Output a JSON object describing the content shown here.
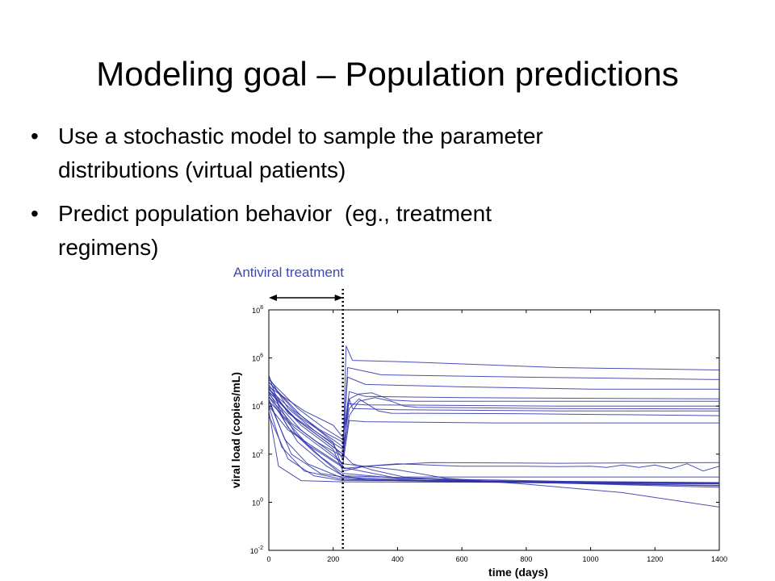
{
  "slide": {
    "title": "Modeling goal – Population predictions",
    "bullets": [
      {
        "symbol": "•",
        "lines": [
          "Use a stochastic model to sample the parameter",
          "distributions (virtual patients)"
        ]
      },
      {
        "symbol": "•",
        "lines": [
          "Predict population behavior  (eg., treatment",
          "regimens)"
        ]
      }
    ],
    "annotation": "Antiviral treatment"
  },
  "chart_data": {
    "type": "line",
    "title": "",
    "xlabel": "time (days)",
    "ylabel": "viral load (copies/mL)",
    "xlim": [
      0,
      1400
    ],
    "ylim_log10": [
      -2,
      8
    ],
    "y_scale": "log",
    "x_ticks": [
      "0",
      "200",
      "400",
      "600",
      "800",
      "1000",
      "1200",
      "1400"
    ],
    "y_ticks": [
      {
        "base": "10",
        "exp": "8"
      },
      {
        "base": "10",
        "exp": "6"
      },
      {
        "base": "10",
        "exp": "4"
      },
      {
        "base": "10",
        "exp": "2"
      },
      {
        "base": "10",
        "exp": "0"
      },
      {
        "base": "10",
        "exp": "-2"
      }
    ],
    "treatment_start_day": 230,
    "grid": false,
    "line_color": "#2b2fa8",
    "series_note_units": "x in days, y as log10(copies/mL)",
    "series": [
      {
        "values": [
          [
            0,
            4.6
          ],
          [
            60,
            3.1
          ],
          [
            140,
            2.1
          ],
          [
            230,
            1.1
          ],
          [
            300,
            0.95
          ],
          [
            600,
            0.88
          ],
          [
            900,
            0.82
          ],
          [
            1200,
            0.78
          ],
          [
            1400,
            0.76
          ]
        ]
      },
      {
        "values": [
          [
            0,
            4.3
          ],
          [
            50,
            2.6
          ],
          [
            120,
            1.6
          ],
          [
            230,
            1.0
          ],
          [
            400,
            0.9
          ],
          [
            800,
            0.83
          ],
          [
            1400,
            0.68
          ]
        ]
      },
      {
        "values": [
          [
            0,
            4.0
          ],
          [
            40,
            2.3
          ],
          [
            110,
            1.3
          ],
          [
            230,
            0.95
          ],
          [
            500,
            0.87
          ],
          [
            900,
            0.8
          ],
          [
            1400,
            0.62
          ]
        ]
      },
      {
        "values": [
          [
            0,
            4.8
          ],
          [
            80,
            2.9
          ],
          [
            160,
            1.9
          ],
          [
            230,
            1.2
          ],
          [
            400,
            1.0
          ],
          [
            700,
            0.88
          ],
          [
            1100,
            0.8
          ],
          [
            1400,
            0.8
          ]
        ]
      },
      {
        "values": [
          [
            0,
            3.6
          ],
          [
            60,
            1.8
          ],
          [
            140,
            1.1
          ],
          [
            230,
            0.9
          ],
          [
            600,
            0.9
          ],
          [
            1400,
            0.82
          ]
        ]
      },
      {
        "values": [
          [
            0,
            4.2
          ],
          [
            70,
            2.0
          ],
          [
            160,
            1.2
          ],
          [
            230,
            1.05
          ],
          [
            500,
            0.9
          ],
          [
            1000,
            0.78
          ],
          [
            1400,
            0.7
          ]
        ]
      },
      {
        "values": [
          [
            0,
            3.8
          ],
          [
            30,
            1.5
          ],
          [
            100,
            0.9
          ],
          [
            230,
            0.85
          ],
          [
            1400,
            0.8
          ]
        ]
      },
      {
        "values": [
          [
            0,
            4.4
          ],
          [
            90,
            2.5
          ],
          [
            180,
            1.5
          ],
          [
            230,
            1.1
          ],
          [
            600,
            0.95
          ],
          [
            1000,
            0.85
          ],
          [
            1400,
            0.78
          ]
        ]
      },
      {
        "values": [
          [
            0,
            4.5
          ],
          [
            100,
            3.0
          ],
          [
            200,
            2.0
          ],
          [
            230,
            1.6
          ],
          [
            400,
            1.35
          ],
          [
            550,
            1.0
          ],
          [
            800,
            0.75
          ],
          [
            1100,
            0.4
          ],
          [
            1400,
            -0.2
          ]
        ]
      },
      {
        "values": [
          [
            0,
            5.3
          ],
          [
            40,
            3.6
          ],
          [
            120,
            2.4
          ],
          [
            230,
            1.45
          ],
          [
            400,
            1.0
          ],
          [
            700,
            0.85
          ],
          [
            1000,
            0.8
          ],
          [
            1400,
            0.8
          ]
        ]
      },
      {
        "values": [
          [
            0,
            4.7
          ],
          [
            80,
            3.5
          ],
          [
            160,
            2.7
          ],
          [
            230,
            2.0
          ],
          [
            260,
            1.6
          ],
          [
            320,
            1.35
          ],
          [
            420,
            1.05
          ],
          [
            600,
            1.05
          ],
          [
            1000,
            1.05
          ],
          [
            1300,
            1.05
          ],
          [
            1400,
            1.05
          ]
        ]
      },
      {
        "values": [
          [
            0,
            4.6
          ],
          [
            100,
            3.2
          ],
          [
            200,
            2.2
          ],
          [
            230,
            1.3
          ],
          [
            300,
            1.5
          ],
          [
            400,
            1.6
          ],
          [
            500,
            1.55
          ],
          [
            600,
            1.5
          ],
          [
            700,
            1.5
          ],
          [
            800,
            1.5
          ],
          [
            900,
            1.48
          ],
          [
            1000,
            1.5
          ],
          [
            1050,
            1.45
          ],
          [
            1100,
            1.55
          ],
          [
            1150,
            1.45
          ],
          [
            1200,
            1.55
          ],
          [
            1250,
            1.4
          ],
          [
            1300,
            1.6
          ],
          [
            1350,
            1.3
          ],
          [
            1400,
            1.5
          ]
        ]
      },
      {
        "values": [
          [
            0,
            5.0
          ],
          [
            100,
            3.6
          ],
          [
            200,
            2.5
          ],
          [
            230,
            1.4
          ],
          [
            300,
            1.5
          ],
          [
            500,
            1.65
          ],
          [
            900,
            1.62
          ],
          [
            1400,
            1.65
          ]
        ]
      },
      {
        "values": [
          [
            0,
            5.2
          ],
          [
            60,
            3.9
          ],
          [
            140,
            3.0
          ],
          [
            200,
            2.4
          ],
          [
            230,
            1.8
          ],
          [
            240,
            6.5
          ],
          [
            260,
            5.9
          ],
          [
            400,
            5.85
          ],
          [
            900,
            5.6
          ],
          [
            1400,
            5.5
          ]
        ]
      },
      {
        "values": [
          [
            0,
            5.0
          ],
          [
            80,
            3.8
          ],
          [
            160,
            3.0
          ],
          [
            230,
            2.5
          ],
          [
            245,
            5.2
          ],
          [
            300,
            4.9
          ],
          [
            600,
            4.8
          ],
          [
            1000,
            4.7
          ],
          [
            1400,
            4.7
          ]
        ]
      },
      {
        "values": [
          [
            0,
            4.9
          ],
          [
            60,
            3.7
          ],
          [
            150,
            2.9
          ],
          [
            230,
            2.2
          ],
          [
            245,
            5.6
          ],
          [
            350,
            5.3
          ],
          [
            800,
            5.2
          ],
          [
            1400,
            5.1
          ]
        ]
      },
      {
        "values": [
          [
            0,
            4.6
          ],
          [
            90,
            3.4
          ],
          [
            170,
            2.6
          ],
          [
            230,
            2.0
          ],
          [
            250,
            4.3
          ],
          [
            260,
            3.9
          ],
          [
            400,
            3.85
          ],
          [
            900,
            3.8
          ],
          [
            1400,
            3.8
          ]
        ]
      },
      {
        "values": [
          [
            0,
            4.4
          ],
          [
            70,
            3.3
          ],
          [
            150,
            2.5
          ],
          [
            230,
            1.9
          ],
          [
            250,
            3.6
          ],
          [
            280,
            4.2
          ],
          [
            330,
            4.35
          ],
          [
            380,
            4.2
          ],
          [
            420,
            4.0
          ],
          [
            460,
            3.95
          ],
          [
            900,
            3.9
          ],
          [
            1400,
            3.88
          ]
        ]
      },
      {
        "values": [
          [
            0,
            5.1
          ],
          [
            90,
            3.9
          ],
          [
            170,
            3.1
          ],
          [
            230,
            2.6
          ],
          [
            250,
            4.6
          ],
          [
            300,
            4.4
          ],
          [
            600,
            4.35
          ],
          [
            1400,
            4.3
          ]
        ]
      },
      {
        "values": [
          [
            0,
            4.7
          ],
          [
            100,
            3.5
          ],
          [
            200,
            2.6
          ],
          [
            230,
            2.3
          ],
          [
            250,
            3.9
          ],
          [
            280,
            4.3
          ],
          [
            310,
            4.05
          ],
          [
            340,
            3.8
          ],
          [
            380,
            3.7
          ],
          [
            800,
            3.68
          ],
          [
            1400,
            3.6
          ]
        ]
      },
      {
        "values": [
          [
            0,
            4.2
          ],
          [
            80,
            3.1
          ],
          [
            160,
            2.3
          ],
          [
            230,
            1.6
          ],
          [
            250,
            3.4
          ],
          [
            300,
            3.35
          ],
          [
            700,
            3.3
          ],
          [
            1400,
            3.3
          ]
        ]
      },
      {
        "values": [
          [
            0,
            4.0
          ],
          [
            60,
            3.0
          ],
          [
            150,
            2.2
          ],
          [
            230,
            1.5
          ],
          [
            245,
            4.1
          ],
          [
            300,
            4.05
          ],
          [
            900,
            4.0
          ],
          [
            1400,
            4.0
          ]
        ]
      },
      {
        "values": [
          [
            0,
            4.8
          ],
          [
            110,
            3.8
          ],
          [
            200,
            3.2
          ],
          [
            230,
            2.7
          ],
          [
            250,
            4.3
          ],
          [
            280,
            4.5
          ],
          [
            320,
            4.55
          ],
          [
            380,
            4.25
          ],
          [
            450,
            4.2
          ],
          [
            1400,
            4.2
          ]
        ]
      }
    ]
  }
}
